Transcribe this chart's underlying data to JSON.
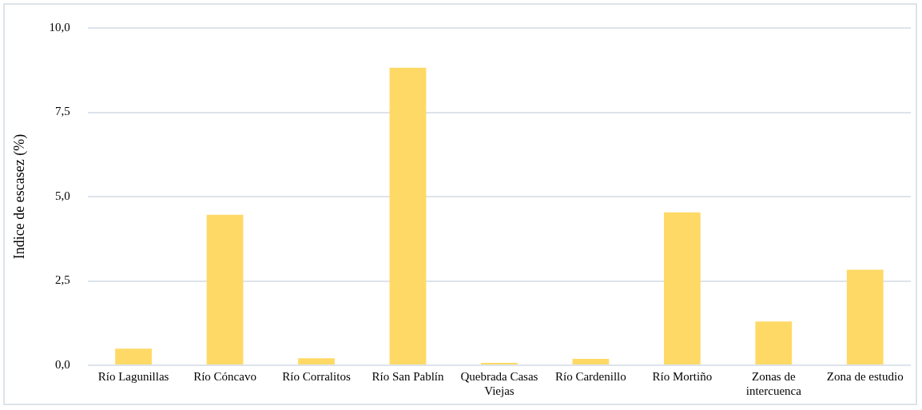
{
  "chart_data": {
    "type": "bar",
    "ylabel": "Indice de escasez (%)",
    "categories": [
      "Río Lagunillas",
      "Río Cóncavo",
      "Río Corralitos",
      "Río San Pablín",
      "Quebrada Casas Viejas",
      "Río Cardenillo",
      "Río Mortiño",
      "Zonas de intercuenca",
      "Zona de estudio"
    ],
    "values": [
      0.49,
      4.46,
      0.21,
      8.82,
      0.07,
      0.19,
      4.53,
      1.3,
      2.83
    ],
    "color": "#ffd966",
    "ylim": [
      0,
      10
    ],
    "yticks": [
      {
        "value": 0,
        "label": "0,0"
      },
      {
        "value": 2.5,
        "label": "2,5"
      },
      {
        "value": 5,
        "label": "5,0"
      },
      {
        "value": 7.5,
        "label": "7,5"
      },
      {
        "value": 10,
        "label": "10,0"
      }
    ],
    "grid": "y",
    "legend": false
  }
}
